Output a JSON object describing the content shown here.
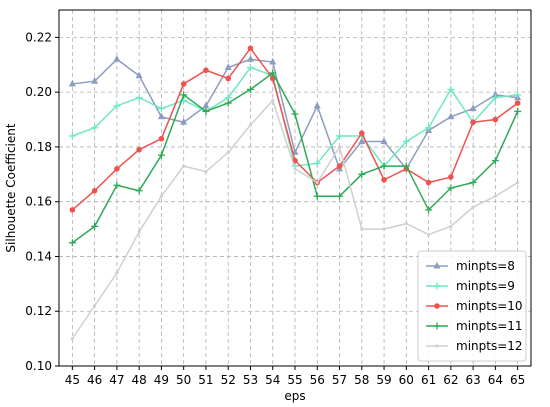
{
  "chart_data": {
    "type": "line",
    "xlabel": "eps",
    "ylabel": "Silhouette Coefficient",
    "x": [
      45,
      46,
      47,
      48,
      49,
      50,
      51,
      52,
      53,
      54,
      55,
      56,
      57,
      58,
      59,
      60,
      61,
      62,
      63,
      64,
      65
    ],
    "ylim": [
      0.1,
      0.23
    ],
    "yticks": [
      "0.10",
      "0.12",
      "0.14",
      "0.16",
      "0.18",
      "0.20",
      "0.22"
    ],
    "grid": true,
    "legend_position": "bottom-right",
    "series": [
      {
        "name": "minpts=8",
        "color": "#8c9dbf",
        "marker": "triangle",
        "values": [
          0.203,
          0.204,
          0.212,
          0.206,
          0.191,
          0.189,
          0.195,
          0.209,
          0.212,
          0.211,
          0.178,
          0.195,
          0.172,
          0.182,
          0.182,
          0.172,
          0.186,
          0.191,
          0.194,
          0.199,
          0.198
        ]
      },
      {
        "name": "minpts=9",
        "color": "#6ee8c2",
        "marker": "plus",
        "values": [
          0.184,
          0.187,
          0.195,
          0.198,
          0.194,
          0.197,
          0.193,
          0.198,
          0.209,
          0.206,
          0.173,
          0.174,
          0.184,
          0.184,
          0.173,
          0.182,
          0.187,
          0.201,
          0.189,
          0.198,
          0.199
        ]
      },
      {
        "name": "minpts=10",
        "color": "#f0524f",
        "marker": "circle",
        "values": [
          0.157,
          0.164,
          0.172,
          0.179,
          0.183,
          0.203,
          0.208,
          0.205,
          0.216,
          0.205,
          0.175,
          0.167,
          0.173,
          0.185,
          0.168,
          0.172,
          0.167,
          0.169,
          0.189,
          0.19,
          0.196
        ]
      },
      {
        "name": "minpts=11",
        "color": "#2eaa55",
        "marker": "plus",
        "values": [
          0.145,
          0.151,
          0.166,
          0.164,
          0.177,
          0.199,
          0.193,
          0.196,
          0.201,
          0.207,
          0.192,
          0.162,
          0.162,
          0.17,
          0.173,
          0.173,
          0.157,
          0.165,
          0.167,
          0.175,
          0.193
        ]
      },
      {
        "name": "minpts=12",
        "color": "#d0d0d0",
        "marker": "circle-small",
        "values": [
          0.11,
          0.122,
          0.134,
          0.149,
          0.162,
          0.173,
          0.171,
          0.178,
          0.188,
          0.197,
          0.172,
          0.167,
          0.18,
          0.15,
          0.15,
          0.152,
          0.148,
          0.151,
          0.158,
          0.162,
          0.167
        ]
      }
    ]
  }
}
